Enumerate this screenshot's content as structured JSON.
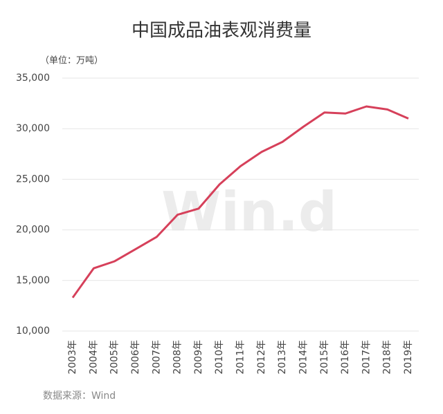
{
  "chart_data": {
    "type": "line",
    "title": "中国成品油表观消费量",
    "unit_label": "（单位：万吨）",
    "source": "数据来源：Wind",
    "watermark": "Win.d",
    "categories": [
      "2003年",
      "2004年",
      "2005年",
      "2006年",
      "2007年",
      "2008年",
      "2009年",
      "2010年",
      "2011年",
      "2012年",
      "2013年",
      "2014年",
      "2015年",
      "2016年",
      "2017年",
      "2018年",
      "2019年"
    ],
    "values": [
      13300,
      16200,
      16900,
      18100,
      19300,
      21500,
      22100,
      24500,
      26300,
      27700,
      28700,
      30200,
      31600,
      31500,
      32200,
      31900,
      31000
    ],
    "color": "#d6405a",
    "ylim": [
      10000,
      35000
    ],
    "yticks": [
      {
        "value": 10000,
        "label": "10,000"
      },
      {
        "value": 15000,
        "label": "15,000"
      },
      {
        "value": 20000,
        "label": "20,000"
      },
      {
        "value": 25000,
        "label": "25,000"
      },
      {
        "value": 30000,
        "label": "30,000"
      },
      {
        "value": 35000,
        "label": "35,000"
      }
    ],
    "grid": true
  }
}
